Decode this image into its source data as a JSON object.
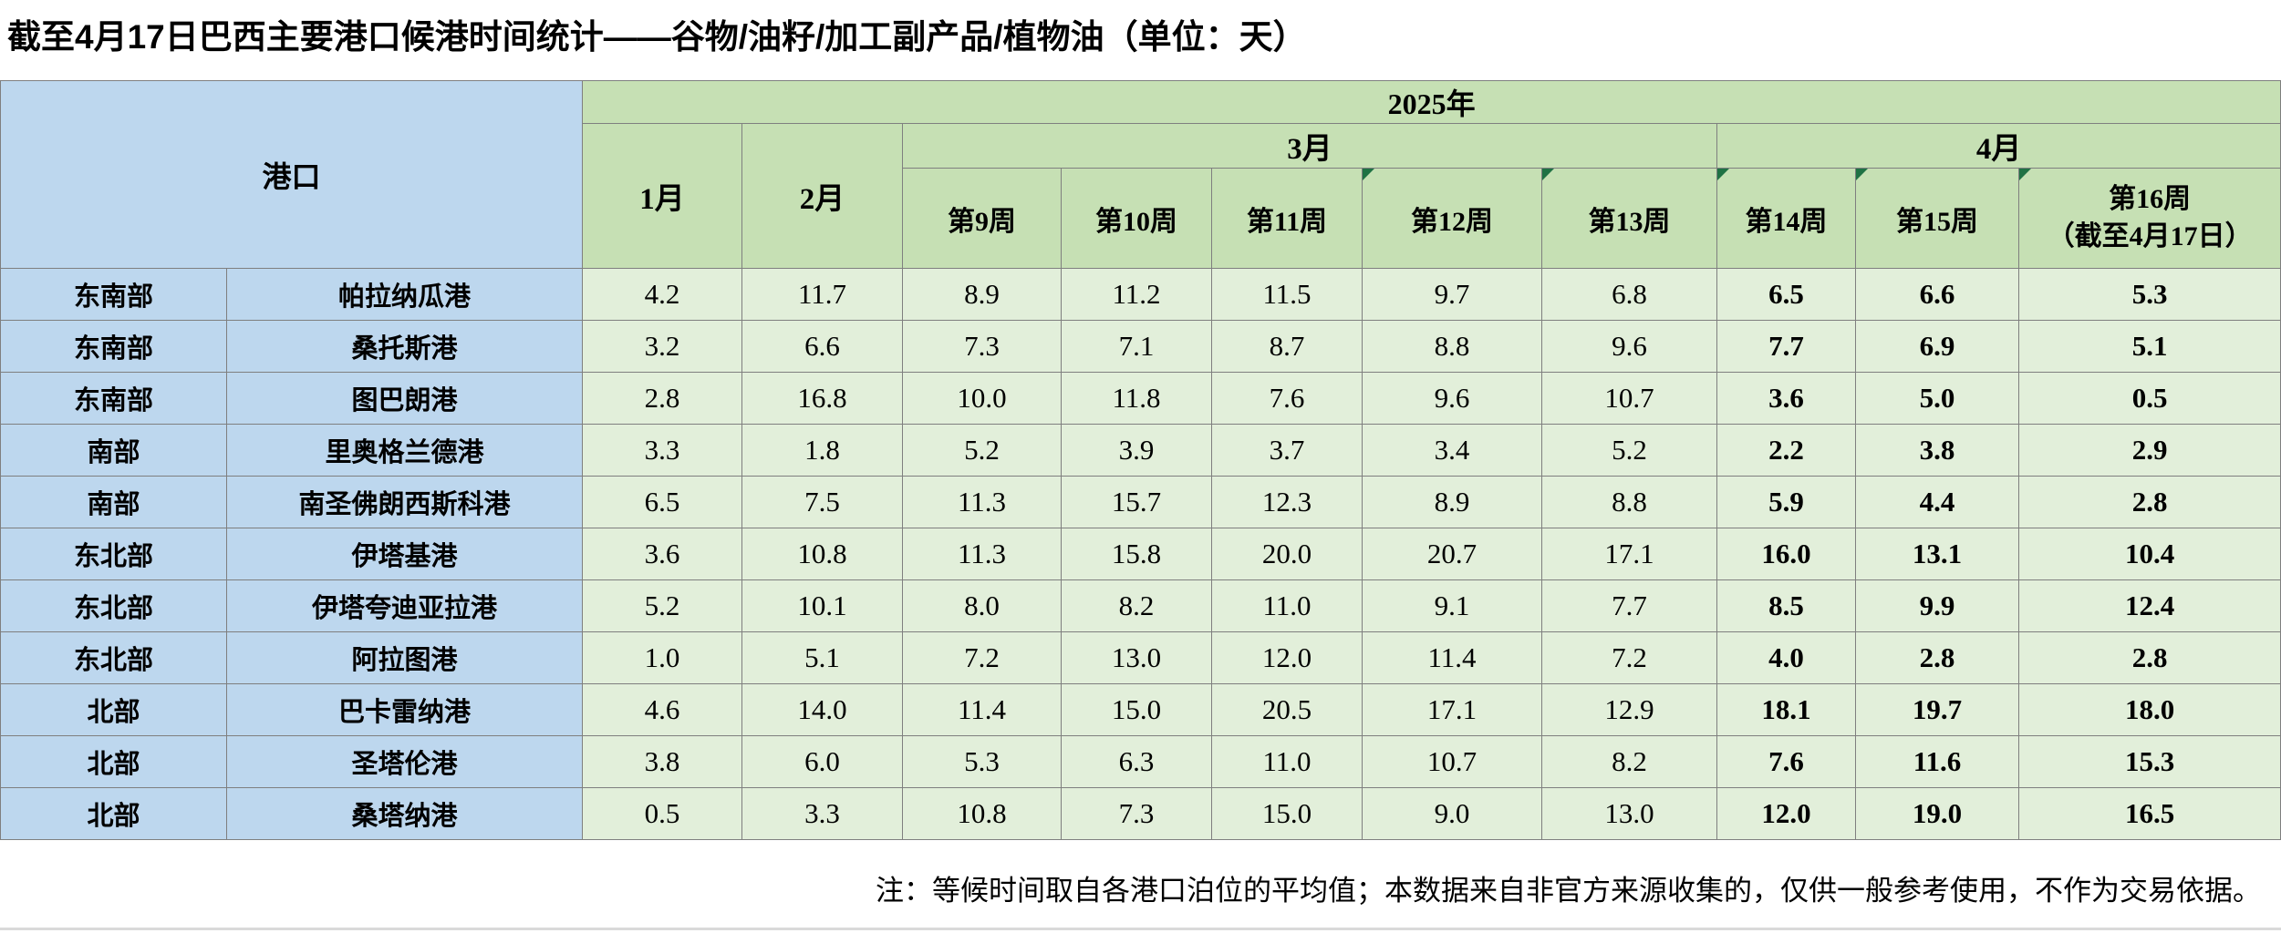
{
  "title": "截至4月17日巴西主要港口候港时间统计——谷物/油籽/加工副产品/植物油（单位：天）",
  "note": "注：等候时间取自各港口泊位的平均值；本数据来自非官方来源收集的，仅供一般参考使用，不作为交易依据。",
  "table": {
    "corner_label": "港口",
    "year_label": "2025年",
    "months": [
      "1月",
      "2月",
      "3月",
      "4月"
    ],
    "weeks": [
      "第9周",
      "第10周",
      "第11周",
      "第12周",
      "第13周",
      "第14周",
      "第15周"
    ],
    "week16_line1": "第16周",
    "week16_line2": "（截至4月17日）",
    "bold_value_columns": [
      "第14周",
      "第15周",
      "第16周"
    ]
  },
  "rows": [
    {
      "region": "东南部",
      "port": "帕拉纳瓜港",
      "values": [
        "4.2",
        "11.7",
        "8.9",
        "11.2",
        "11.5",
        "9.7",
        "6.8",
        "6.5",
        "6.6",
        "5.3"
      ]
    },
    {
      "region": "东南部",
      "port": "桑托斯港",
      "values": [
        "3.2",
        "6.6",
        "7.3",
        "7.1",
        "8.7",
        "8.8",
        "9.6",
        "7.7",
        "6.9",
        "5.1"
      ]
    },
    {
      "region": "东南部",
      "port": "图巴朗港",
      "values": [
        "2.8",
        "16.8",
        "10.0",
        "11.8",
        "7.6",
        "9.6",
        "10.7",
        "3.6",
        "5.0",
        "0.5"
      ]
    },
    {
      "region": "南部",
      "port": "里奥格兰德港",
      "values": [
        "3.3",
        "1.8",
        "5.2",
        "3.9",
        "3.7",
        "3.4",
        "5.2",
        "2.2",
        "3.8",
        "2.9"
      ]
    },
    {
      "region": "南部",
      "port": "南圣佛朗西斯科港",
      "values": [
        "6.5",
        "7.5",
        "11.3",
        "15.7",
        "12.3",
        "8.9",
        "8.8",
        "5.9",
        "4.4",
        "2.8"
      ]
    },
    {
      "region": "东北部",
      "port": "伊塔基港",
      "values": [
        "3.6",
        "10.8",
        "11.3",
        "15.8",
        "20.0",
        "20.7",
        "17.1",
        "16.0",
        "13.1",
        "10.4"
      ]
    },
    {
      "region": "东北部",
      "port": "伊塔夸迪亚拉港",
      "values": [
        "5.2",
        "10.1",
        "8.0",
        "8.2",
        "11.0",
        "9.1",
        "7.7",
        "8.5",
        "9.9",
        "12.4"
      ]
    },
    {
      "region": "东北部",
      "port": "阿拉图港",
      "values": [
        "1.0",
        "5.1",
        "7.2",
        "13.0",
        "12.0",
        "11.4",
        "7.2",
        "4.0",
        "2.8",
        "2.8"
      ]
    },
    {
      "region": "北部",
      "port": "巴卡雷纳港",
      "values": [
        "4.6",
        "14.0",
        "11.4",
        "15.0",
        "20.5",
        "17.1",
        "12.9",
        "18.1",
        "19.7",
        "18.0"
      ]
    },
    {
      "region": "北部",
      "port": "圣塔伦港",
      "values": [
        "3.8",
        "6.0",
        "5.3",
        "6.3",
        "11.0",
        "10.7",
        "8.2",
        "7.6",
        "11.6",
        "15.3"
      ]
    },
    {
      "region": "北部",
      "port": "桑塔纳港",
      "values": [
        "0.5",
        "3.3",
        "10.8",
        "7.3",
        "15.0",
        "9.0",
        "13.0",
        "12.0",
        "19.0",
        "16.5"
      ]
    }
  ],
  "colors": {
    "header_blue": "#BDD7EE",
    "header_green": "#C6E0B4",
    "cell_green": "#E2EFDA",
    "indicator_green": "#1F7244",
    "border_gray": "#7F7F7F",
    "divider_gray": "#D9D9D9"
  },
  "chart_data": {
    "type": "table",
    "title": "截至4月17日巴西主要港口候港时间统计——谷物/油籽/加工副产品/植物油（单位：天）",
    "unit": "天",
    "year": "2025年",
    "categories": [
      "1月",
      "2月",
      "3月-第9周",
      "3月-第10周",
      "3月-第11周",
      "3月-第12周",
      "3月-第13周",
      "4月-第14周",
      "4月-第15周",
      "4月-第16周（截至4月17日）"
    ],
    "series": [
      {
        "name": "东南部-帕拉纳瓜港",
        "values": [
          4.2,
          11.7,
          8.9,
          11.2,
          11.5,
          9.7,
          6.8,
          6.5,
          6.6,
          5.3
        ]
      },
      {
        "name": "东南部-桑托斯港",
        "values": [
          3.2,
          6.6,
          7.3,
          7.1,
          8.7,
          8.8,
          9.6,
          7.7,
          6.9,
          5.1
        ]
      },
      {
        "name": "东南部-图巴朗港",
        "values": [
          2.8,
          16.8,
          10.0,
          11.8,
          7.6,
          9.6,
          10.7,
          3.6,
          5.0,
          0.5
        ]
      },
      {
        "name": "南部-里奥格兰德港",
        "values": [
          3.3,
          1.8,
          5.2,
          3.9,
          3.7,
          3.4,
          5.2,
          2.2,
          3.8,
          2.9
        ]
      },
      {
        "name": "南部-南圣佛朗西斯科港",
        "values": [
          6.5,
          7.5,
          11.3,
          15.7,
          12.3,
          8.9,
          8.8,
          5.9,
          4.4,
          2.8
        ]
      },
      {
        "name": "东北部-伊塔基港",
        "values": [
          3.6,
          10.8,
          11.3,
          15.8,
          20.0,
          20.7,
          17.1,
          16.0,
          13.1,
          10.4
        ]
      },
      {
        "name": "东北部-伊塔夸迪亚拉港",
        "values": [
          5.2,
          10.1,
          8.0,
          8.2,
          11.0,
          9.1,
          7.7,
          8.5,
          9.9,
          12.4
        ]
      },
      {
        "name": "东北部-阿拉图港",
        "values": [
          1.0,
          5.1,
          7.2,
          13.0,
          12.0,
          11.4,
          7.2,
          4.0,
          2.8,
          2.8
        ]
      },
      {
        "name": "北部-巴卡雷纳港",
        "values": [
          4.6,
          14.0,
          11.4,
          15.0,
          20.5,
          17.1,
          12.9,
          18.1,
          19.7,
          18.0
        ]
      },
      {
        "name": "北部-圣塔伦港",
        "values": [
          3.8,
          6.0,
          5.3,
          6.3,
          11.0,
          10.7,
          8.2,
          7.6,
          11.6,
          15.3
        ]
      },
      {
        "name": "北部-桑塔纳港",
        "values": [
          0.5,
          3.3,
          10.8,
          7.3,
          15.0,
          9.0,
          13.0,
          12.0,
          19.0,
          16.5
        ]
      }
    ],
    "footnote": "注：等候时间取自各港口泊位的平均值；本数据来自非官方来源收集的，仅供一般参考使用，不作为交易依据。"
  }
}
